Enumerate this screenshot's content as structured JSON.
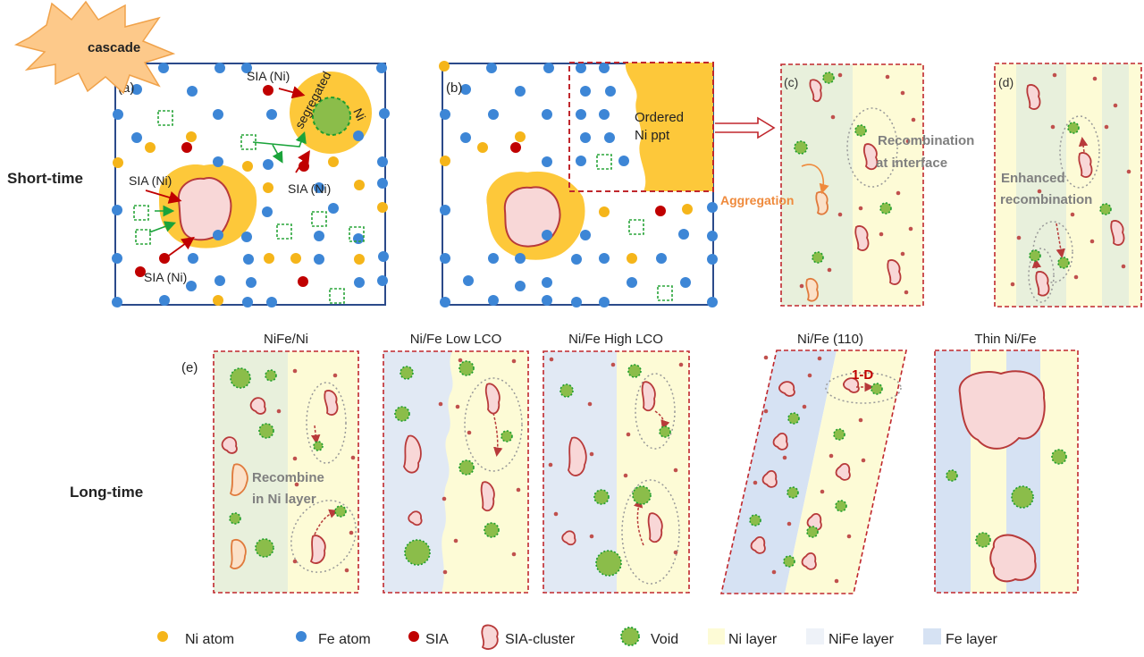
{
  "row_labels": {
    "short": "Short-time",
    "long": "Long-time"
  },
  "cascade": "cascade",
  "panel_a": {
    "tag": "(a)",
    "sia_top": "SIA (Ni)",
    "sia_mid_left": "SIA (Ni)",
    "sia_mid_right": "SIA (Ni)",
    "sia_bottom": "SIA (Ni)",
    "segregated_1": "segregated",
    "segregated_2": "Ni"
  },
  "panel_b": {
    "tag": "(b)",
    "ppt_line1": "Ordered",
    "ppt_line2": "Ni ppt"
  },
  "panel_c": {
    "tag": "(c)",
    "recomb_line1": "Recombination",
    "recomb_line2": "at interface",
    "aggregation": "Aggregation"
  },
  "panel_d": {
    "tag": "(d)",
    "enh_line1": "Enhanced",
    "enh_line2": "recombination"
  },
  "panel_e": {
    "tag": "(e)",
    "titles": [
      "NiFe/Ni",
      "Ni/Fe Low LCO",
      "Ni/Fe High LCO",
      "Ni/Fe (110)",
      "Thin Ni/Fe"
    ],
    "recombine_line1": "Recombine",
    "recombine_line2": "in Ni layer",
    "one_d": "1-D"
  },
  "legend": [
    "Ni atom",
    "Fe atom",
    "SIA",
    "SIA-cluster",
    "Void",
    "Ni layer",
    "NiFe layer",
    "Fe layer"
  ],
  "colors": {
    "ni_atom": "#f5b51a",
    "fe_atom": "#3d86d6",
    "sia": "#c00000",
    "cluster_fill": "#f8d7d7",
    "cluster_stroke": "#b83a3a",
    "void_fill": "#8bbd4a",
    "void_stroke": "#1e9e2e",
    "ni_layer": "#fdfbd6",
    "nife_layer": "#eef2f8",
    "fe_layer": "#d6e2f3",
    "frame_blue": "#2b4a8a",
    "frame_red": "#c0272d",
    "vacancy": "#2aa53a",
    "seg_gold": "#fdc83a",
    "label_gray": "#7f7f7f",
    "label_orange": "#ef8a3c"
  }
}
